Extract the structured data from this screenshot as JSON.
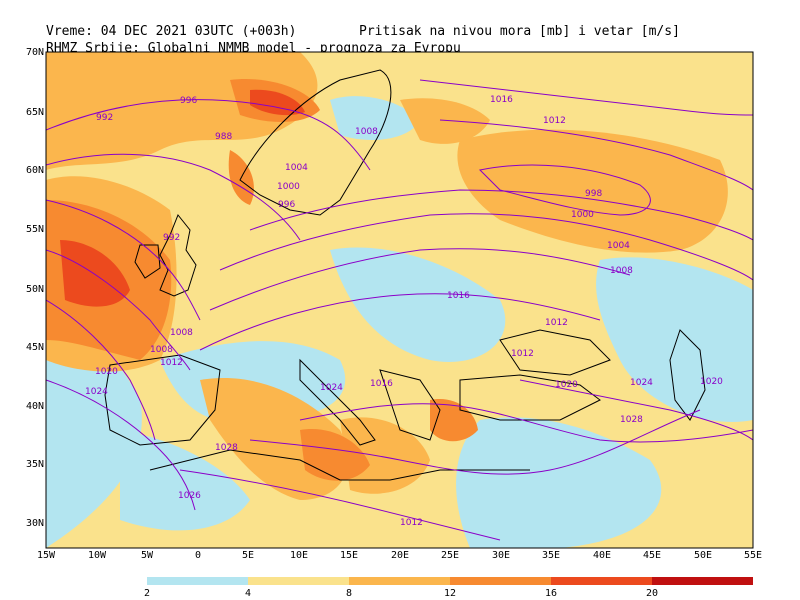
{
  "header": {
    "title": "RHMZ Srbije: Globalni NMMB model - prognoza za Evropu",
    "valid_time": "Vreme: 04 DEC 2021 03UTC (+003h)",
    "field": "Pritisak na nivou mora [mb] i vetar [m/s]"
  },
  "axes": {
    "lat_labels": [
      "70N",
      "65N",
      "60N",
      "55N",
      "50N",
      "45N",
      "40N",
      "35N",
      "30N"
    ],
    "lon_labels": [
      "15W",
      "10W",
      "5W",
      "0",
      "5E",
      "10E",
      "15E",
      "20E",
      "25E",
      "30E",
      "35E",
      "40E",
      "45E",
      "50E",
      "55E"
    ]
  },
  "colorbar": {
    "labels": [
      "2",
      "4",
      "8",
      "12",
      "16",
      "20"
    ],
    "colors": [
      "#b3e5f0",
      "#fae28c",
      "#fbb64d",
      "#f78a30",
      "#ec4a1e",
      "#c01010"
    ]
  },
  "isobars": [
    {
      "label": "996"
    },
    {
      "label": "992"
    },
    {
      "label": "988"
    },
    {
      "label": "1016"
    },
    {
      "label": "1012"
    },
    {
      "label": "1008"
    },
    {
      "label": "1004"
    },
    {
      "label": "1000"
    },
    {
      "label": "996"
    },
    {
      "label": "998"
    },
    {
      "label": "992"
    },
    {
      "label": "1000"
    },
    {
      "label": "1004"
    },
    {
      "label": "1008"
    },
    {
      "label": "1012"
    },
    {
      "label": "1016"
    },
    {
      "label": "1020"
    },
    {
      "label": "1024"
    },
    {
      "label": "1028"
    },
    {
      "label": "1024"
    },
    {
      "label": "1020"
    },
    {
      "label": "1012"
    },
    {
      "label": "1008"
    },
    {
      "label": "1028"
    },
    {
      "label": "1026"
    },
    {
      "label": "1020"
    },
    {
      "label": "1024"
    },
    {
      "label": "1012"
    },
    {
      "label": "1016"
    },
    {
      "label": "1012"
    },
    {
      "label": "1008"
    }
  ]
}
